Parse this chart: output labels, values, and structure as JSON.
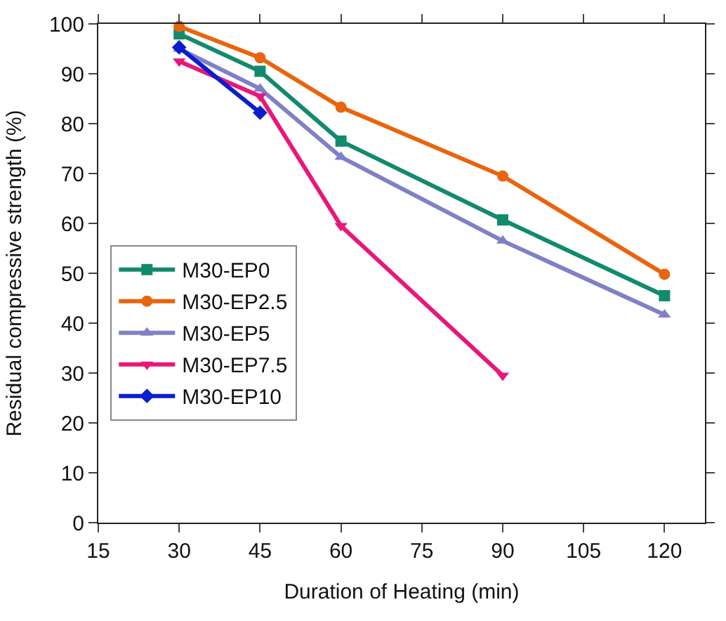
{
  "chart_data": {
    "type": "line",
    "xlabel": "Duration of Heating (min)",
    "ylabel": "Residual compressive strength (%)",
    "xlim": [
      15,
      127.5
    ],
    "xticks": [
      15,
      30,
      45,
      60,
      75,
      90,
      105,
      120
    ],
    "ylim": [
      0,
      100
    ],
    "yticks": [
      0,
      10,
      20,
      30,
      40,
      50,
      60,
      70,
      80,
      90,
      100
    ],
    "legend": "left",
    "series": [
      {
        "name": "M30-EP0",
        "color": "#128a6e",
        "marker": "square",
        "x": [
          30,
          45,
          60,
          90,
          120
        ],
        "values": [
          98,
          90.5,
          76.5,
          60.7,
          45.5
        ]
      },
      {
        "name": "M30-EP2.5",
        "color": "#e8650e",
        "marker": "circle",
        "x": [
          30,
          45,
          60,
          90,
          120
        ],
        "values": [
          99.5,
          93.2,
          83.3,
          69.5,
          49.8
        ]
      },
      {
        "name": "M30-EP5",
        "color": "#8080c8",
        "marker": "triangle",
        "x": [
          30,
          45,
          60,
          90,
          120
        ],
        "values": [
          95,
          87,
          73.3,
          56.5,
          41.7
        ]
      },
      {
        "name": "M30-EP7.5",
        "color": "#e8177a",
        "marker": "triangle-down",
        "x": [
          30,
          45,
          60,
          90
        ],
        "values": [
          92.5,
          85.5,
          59.5,
          29.5
        ]
      },
      {
        "name": "M30-EP10",
        "color": "#0a1ed0",
        "marker": "diamond",
        "x": [
          30,
          45
        ],
        "values": [
          95.3,
          82.2
        ]
      }
    ]
  }
}
